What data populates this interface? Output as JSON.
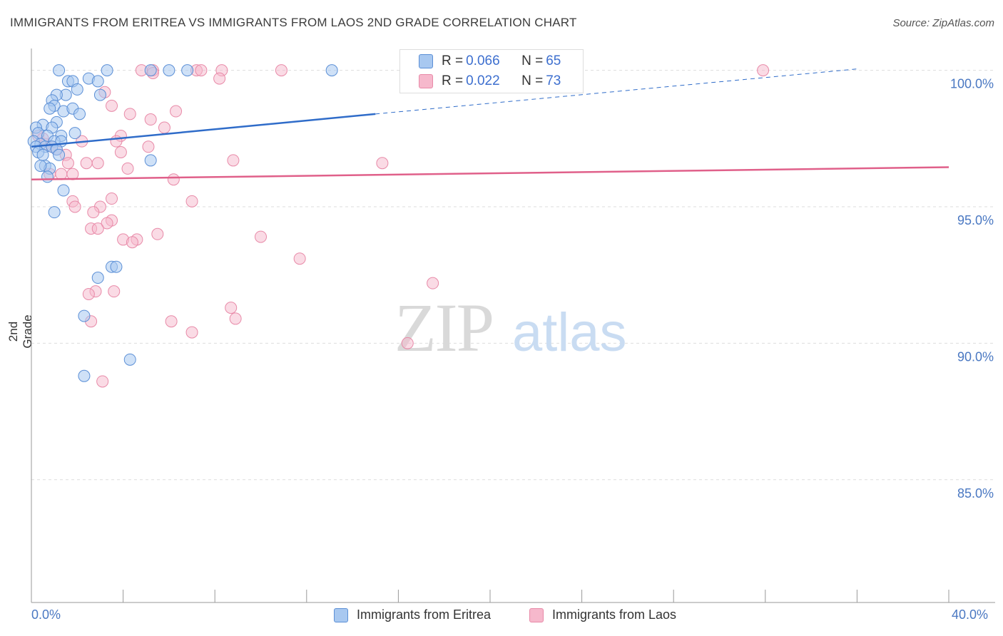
{
  "title": "IMMIGRANTS FROM ERITREA VS IMMIGRANTS FROM LAOS 2ND GRADE CORRELATION CHART",
  "source": "Source: ZipAtlas.com",
  "watermark": "ZIPatlas",
  "legend": {
    "rows": [
      {
        "r_label": "R = ",
        "r_value": "0.066",
        "n_label": "N = ",
        "n_value": "65"
      },
      {
        "r_label": "R = ",
        "r_value": "0.022",
        "n_label": "N = ",
        "n_value": "73"
      }
    ]
  },
  "colors": {
    "blue_fill": "#a8c8f0",
    "blue_stroke": "#5b8fd6",
    "blue_line": "#2f6cc9",
    "pink_fill": "#f6b8cc",
    "pink_stroke": "#e88aa8",
    "pink_line": "#e0608a",
    "axis_label": "#4a78c2",
    "grid": "#dddddd"
  },
  "chart_data": {
    "type": "scatter",
    "title": "IMMIGRANTS FROM ERITREA VS IMMIGRANTS FROM LAOS 2ND GRADE CORRELATION CHART",
    "xlabel": "",
    "ylabel": "2nd Grade",
    "xlim": [
      0,
      40
    ],
    "ylim": [
      80.5,
      100.8
    ],
    "x_tick_labels": [
      "0.0%",
      "40.0%"
    ],
    "y_ticks": [
      85,
      90,
      95,
      100
    ],
    "y_tick_labels": [
      "85.0%",
      "90.0%",
      "95.0%",
      "100.0%"
    ],
    "grid": true,
    "legend_position": "top-center",
    "series": [
      {
        "name": "Immigrants from Eritrea",
        "color": "#a8c8f0",
        "r": 0.066,
        "n": 65,
        "trend": {
          "x": [
            0,
            15
          ],
          "y": [
            97.2,
            98.4
          ],
          "dashed_to": [
            36,
            100.05
          ]
        },
        "points": [
          [
            1.2,
            100.0
          ],
          [
            3.3,
            100.0
          ],
          [
            5.2,
            100.0
          ],
          [
            6.0,
            100.0
          ],
          [
            6.8,
            100.0
          ],
          [
            13.1,
            100.0
          ],
          [
            1.6,
            99.6
          ],
          [
            1.8,
            99.6
          ],
          [
            2.5,
            99.7
          ],
          [
            2.9,
            99.6
          ],
          [
            2.0,
            99.3
          ],
          [
            1.5,
            99.1
          ],
          [
            1.1,
            99.1
          ],
          [
            0.9,
            98.9
          ],
          [
            3.0,
            99.1
          ],
          [
            1.0,
            98.7
          ],
          [
            0.8,
            98.6
          ],
          [
            1.4,
            98.5
          ],
          [
            1.8,
            98.6
          ],
          [
            2.1,
            98.4
          ],
          [
            1.1,
            98.1
          ],
          [
            0.5,
            98.0
          ],
          [
            0.2,
            97.9
          ],
          [
            0.3,
            97.7
          ],
          [
            0.9,
            97.9
          ],
          [
            1.9,
            97.7
          ],
          [
            0.7,
            97.6
          ],
          [
            1.3,
            97.6
          ],
          [
            0.1,
            97.4
          ],
          [
            0.4,
            97.3
          ],
          [
            1.0,
            97.4
          ],
          [
            1.3,
            97.4
          ],
          [
            0.2,
            97.2
          ],
          [
            0.6,
            97.2
          ],
          [
            0.9,
            97.2
          ],
          [
            1.1,
            97.1
          ],
          [
            0.3,
            97.0
          ],
          [
            0.5,
            96.9
          ],
          [
            1.2,
            96.9
          ],
          [
            0.6,
            96.5
          ],
          [
            0.8,
            96.4
          ],
          [
            0.4,
            96.5
          ],
          [
            5.2,
            96.7
          ],
          [
            0.7,
            96.1
          ],
          [
            1.4,
            95.6
          ],
          [
            1.0,
            94.8
          ],
          [
            3.5,
            92.8
          ],
          [
            3.7,
            92.8
          ],
          [
            2.9,
            92.4
          ],
          [
            2.3,
            91.0
          ],
          [
            4.3,
            89.4
          ],
          [
            2.3,
            88.8
          ]
        ]
      },
      {
        "name": "Immigrants from Laos",
        "color": "#f6b8cc",
        "r": 0.022,
        "n": 73,
        "trend": {
          "x": [
            0,
            40
          ],
          "y": [
            96.0,
            96.45
          ]
        },
        "points": [
          [
            4.8,
            100.0
          ],
          [
            5.3,
            100.0
          ],
          [
            7.2,
            100.0
          ],
          [
            7.4,
            100.0
          ],
          [
            8.3,
            100.0
          ],
          [
            10.9,
            100.0
          ],
          [
            31.9,
            100.0
          ],
          [
            5.3,
            99.9
          ],
          [
            8.2,
            99.7
          ],
          [
            3.2,
            99.2
          ],
          [
            3.5,
            98.7
          ],
          [
            6.3,
            98.5
          ],
          [
            4.3,
            98.4
          ],
          [
            5.2,
            98.2
          ],
          [
            5.8,
            97.9
          ],
          [
            3.9,
            97.6
          ],
          [
            2.2,
            97.4
          ],
          [
            3.7,
            97.4
          ],
          [
            5.1,
            97.2
          ],
          [
            0.6,
            97.3
          ],
          [
            0.3,
            97.6
          ],
          [
            0.5,
            97.5
          ],
          [
            0.9,
            97.2
          ],
          [
            1.1,
            97.1
          ],
          [
            3.9,
            97.0
          ],
          [
            1.5,
            96.9
          ],
          [
            1.6,
            96.6
          ],
          [
            2.4,
            96.6
          ],
          [
            2.9,
            96.6
          ],
          [
            8.8,
            96.7
          ],
          [
            15.3,
            96.6
          ],
          [
            4.2,
            96.4
          ],
          [
            1.3,
            96.2
          ],
          [
            1.8,
            96.2
          ],
          [
            0.8,
            96.2
          ],
          [
            6.2,
            96.0
          ],
          [
            3.5,
            95.3
          ],
          [
            7.0,
            95.2
          ],
          [
            1.8,
            95.2
          ],
          [
            1.9,
            95.0
          ],
          [
            3.0,
            95.0
          ],
          [
            2.7,
            94.8
          ],
          [
            3.5,
            94.5
          ],
          [
            3.3,
            94.4
          ],
          [
            2.6,
            94.2
          ],
          [
            2.9,
            94.2
          ],
          [
            5.5,
            94.0
          ],
          [
            10.0,
            93.9
          ],
          [
            4.0,
            93.8
          ],
          [
            4.6,
            93.8
          ],
          [
            4.4,
            93.7
          ],
          [
            11.7,
            93.1
          ],
          [
            17.5,
            92.2
          ],
          [
            3.6,
            91.9
          ],
          [
            2.8,
            91.9
          ],
          [
            2.5,
            91.8
          ],
          [
            8.7,
            91.3
          ],
          [
            8.9,
            90.9
          ],
          [
            6.1,
            90.8
          ],
          [
            2.6,
            90.8
          ],
          [
            7.0,
            90.4
          ],
          [
            16.4,
            90.0
          ],
          [
            3.1,
            88.6
          ]
        ]
      }
    ]
  }
}
